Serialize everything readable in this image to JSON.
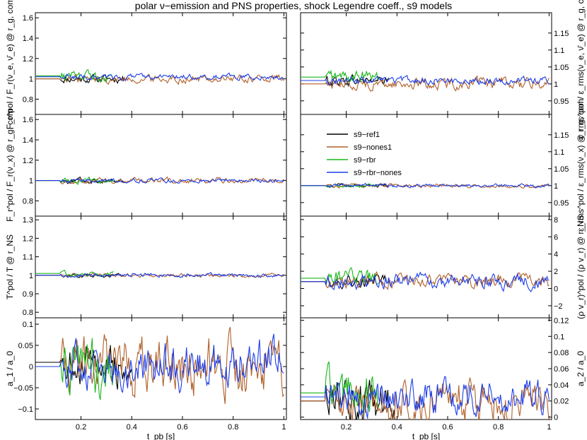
{
  "chart_data": {
    "type": "line",
    "title": "polar ν−emission and PNS properties, shock Legendre coeff., s9 models",
    "legend": {
      "placement": "top-left of middle-right panel",
      "entries": [
        {
          "name": "s9−ref1",
          "color": "#000000"
        },
        {
          "name": "s9−nones1",
          "color": "#b0602a"
        },
        {
          "name": "s9−rbr",
          "color": "#1db51d"
        },
        {
          "name": "s9−rbr−nones",
          "color": "#1c3de8"
        }
      ]
    },
    "x_axis": {
      "label": "t_pb [s]",
      "range": [
        0.02,
        1.01
      ],
      "ticks": [
        "0.2",
        "0.4",
        "0.6",
        "0.8",
        "1"
      ]
    },
    "panels": [
      {
        "id": "r1c1",
        "ylabel": "F_r^pol / F_r(ν_e, ν̄_e) @ r_g, com",
        "ylim": [
          0.65,
          1.65
        ],
        "yticks": [
          "0.8",
          "1",
          "1.2",
          "1.4",
          "1.6"
        ],
        "ytick_side": "left"
      },
      {
        "id": "r1c2",
        "ylabel": "ε_rms^pol / ε_rms(ν_e, ν̄_e) @ r_g, com",
        "ylim": [
          0.91,
          1.21
        ],
        "yticks": [
          "0.95",
          "1",
          "1.05",
          "1.1",
          "1.15"
        ],
        "ytick_side": "right"
      },
      {
        "id": "r2c1",
        "ylabel": "F_r^pol / F_r(ν_x) @ r_g, com",
        "ylim": [
          0.65,
          1.65
        ],
        "yticks": [
          "0.8",
          "1",
          "1.2",
          "1.4",
          "1.6"
        ],
        "ytick_side": "left"
      },
      {
        "id": "r2c2",
        "ylabel": "ε_rms^pol / ε_rms(ν_x) @ r_g, com",
        "ylim": [
          0.91,
          1.21
        ],
        "yticks": [
          "0.95",
          "1",
          "1.05",
          "1.1",
          "1.15"
        ],
        "ytick_side": "right"
      },
      {
        "id": "r3c1",
        "ylabel": "T^pol / T @ r_NS",
        "ylim": [
          0.77,
          1.32
        ],
        "yticks": [
          "0.8",
          "0.9",
          "1",
          "1.1",
          "1.2",
          "1.3"
        ],
        "ytick_side": "left"
      },
      {
        "id": "r3c2",
        "ylabel": "(ρ v_r)^pol / (ρ v_r) @ r_NS",
        "ylim": [
          -3.4,
          8.4
        ],
        "yticks": [
          "−2",
          "0",
          "2",
          "4",
          "6",
          "8"
        ],
        "ytick_side": "right"
      },
      {
        "id": "r4c1",
        "ylabel": "a_1 / a_0",
        "ylim": [
          -0.125,
          0.115
        ],
        "yticks": [
          "−0.1",
          "−0.05",
          "0",
          "0.05",
          "0.1"
        ],
        "ytick_side": "left"
      },
      {
        "id": "r4c2",
        "ylabel": "a_2 / a_0",
        "ylim": [
          -0.003,
          0.123
        ],
        "yticks": [
          "0",
          "0.02",
          "0.04",
          "0.06",
          "0.08",
          "0.1",
          "0.12"
        ],
        "ytick_side": "right"
      }
    ],
    "series": [
      {
        "name": "s9−ref1",
        "color": "#000000",
        "panels": {
          "r1c1": {
            "t_end": 0.37,
            "base": 1,
            "amp": 0.03
          },
          "r1c2": {
            "t_end": 0.37,
            "base": 1.01,
            "amp": 0.012
          },
          "r2c1": {
            "t_end": 0.37,
            "base": 1,
            "amp": 0.02
          },
          "r2c2": {
            "t_end": 0.37,
            "base": 1,
            "amp": 0.004
          },
          "r3c1": {
            "t_end": 0.37,
            "base": 1,
            "amp": 0.008
          },
          "r3c2": {
            "t_end": 0.37,
            "base": 0.8,
            "amp": 0.6
          },
          "r4c1": {
            "t_end": 0.4,
            "base": 0.01,
            "amp": 0.04
          },
          "r4c2": {
            "t_end": 0.4,
            "base": 0.02,
            "amp": 0.02
          }
        }
      },
      {
        "name": "s9−nones1",
        "color": "#b0602a",
        "panels": {
          "r1c1": {
            "t_end": 1.0,
            "base": 1.0,
            "amp": 0.03
          },
          "r1c2": {
            "t_end": 1.0,
            "base": 1.0,
            "amp": 0.012
          },
          "r2c1": {
            "t_end": 1.0,
            "base": 1.0,
            "amp": 0.02
          },
          "r2c2": {
            "t_end": 1.0,
            "base": 1.0,
            "amp": 0.004
          },
          "r3c1": {
            "t_end": 1.0,
            "base": 1.0,
            "amp": 0.008
          },
          "r3c2": {
            "t_end": 1.0,
            "base": 0.8,
            "amp": 0.6
          },
          "r4c1": {
            "t_end": 1.0,
            "base": 0.0,
            "amp": 0.05
          },
          "r4c2": {
            "t_end": 1.0,
            "base": 0.02,
            "amp": 0.02
          }
        }
      },
      {
        "name": "s9−rbr",
        "color": "#1db51d",
        "panels": {
          "r1c1": {
            "t_end": 0.33,
            "base": 1.03,
            "amp": 0.04
          },
          "r1c2": {
            "t_end": 0.33,
            "base": 1.02,
            "amp": 0.015
          },
          "r2c1": {
            "t_end": 0.33,
            "base": 1.0,
            "amp": 0.02
          },
          "r2c2": {
            "t_end": 0.33,
            "base": 1.0,
            "amp": 0.004
          },
          "r3c1": {
            "t_end": 0.33,
            "base": 1.01,
            "amp": 0.01
          },
          "r3c2": {
            "t_end": 0.33,
            "base": 1.2,
            "amp": 0.7
          },
          "r4c1": {
            "t_end": 0.33,
            "base": 0.0,
            "amp": 0.05
          },
          "r4c2": {
            "t_end": 0.33,
            "base": 0.03,
            "amp": 0.02
          }
        }
      },
      {
        "name": "s9−rbr−nones",
        "color": "#1c3de8",
        "panels": {
          "r1c1": {
            "t_end": 1.0,
            "base": 1.02,
            "amp": 0.02
          },
          "r1c2": {
            "t_end": 1.0,
            "base": 1.01,
            "amp": 0.008
          },
          "r2c1": {
            "t_end": 1.0,
            "base": 1.0,
            "amp": 0.015
          },
          "r2c2": {
            "t_end": 1.0,
            "base": 1.0,
            "amp": 0.004
          },
          "r3c1": {
            "t_end": 1.0,
            "base": 1.0,
            "amp": 0.008
          },
          "r3c2": {
            "t_end": 1.0,
            "base": 0.8,
            "amp": 0.6
          },
          "r4c1": {
            "t_end": 1.0,
            "base": 0.0,
            "amp": 0.04
          },
          "r4c2": {
            "t_end": 1.0,
            "base": 0.025,
            "amp": 0.015
          }
        }
      }
    ]
  }
}
